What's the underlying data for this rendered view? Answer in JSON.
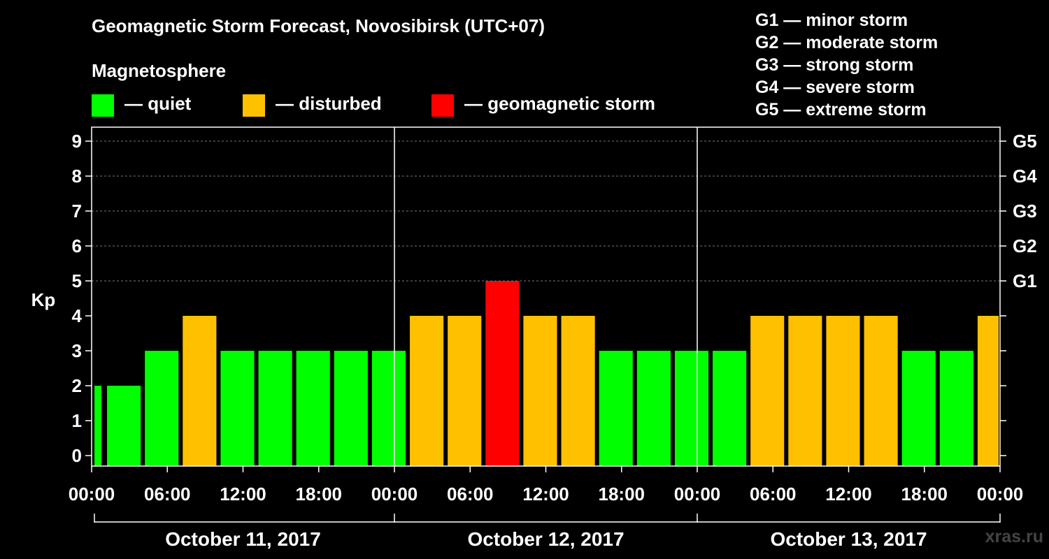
{
  "title": "Geomagnetic Storm Forecast, Novosibirsk (UTC+07)",
  "legend": {
    "heading": "Magnetosphere",
    "items": [
      {
        "label": "— quiet",
        "color": "#00ff00"
      },
      {
        "label": "— disturbed",
        "color": "#ffc000"
      },
      {
        "label": "— geomagnetic storm",
        "color": "#ff0000"
      }
    ]
  },
  "g_scale": [
    "G1 — minor storm",
    "G2 — moderate storm",
    "G3 — strong storm",
    "G4 — severe storm",
    "G5 — extreme storm"
  ],
  "watermark": "xras.ru",
  "colors": {
    "quiet": "#00ff00",
    "disturbed": "#ffc000",
    "storm": "#ff0000",
    "background": "#000000",
    "axis": "#ffffff"
  },
  "chart_data": {
    "type": "bar",
    "ylabel": "Kp",
    "ylim": [
      0,
      9
    ],
    "yticks": [
      "0",
      "1",
      "2",
      "3",
      "4",
      "5",
      "6",
      "7",
      "8",
      "9"
    ],
    "right_ticks": [
      {
        "kp": 5,
        "label": "G1"
      },
      {
        "kp": 6,
        "label": "G2"
      },
      {
        "kp": 7,
        "label": "G3"
      },
      {
        "kp": 8,
        "label": "G4"
      },
      {
        "kp": 9,
        "label": "G5"
      }
    ],
    "xticks": [
      "00:00",
      "06:00",
      "12:00",
      "18:00",
      "00:00",
      "06:00",
      "12:00",
      "18:00",
      "00:00",
      "06:00",
      "12:00",
      "18:00",
      "00:00"
    ],
    "dates": [
      "October 11, 2017",
      "October 12, 2017",
      "October 13, 2017"
    ],
    "x_start": "2017-10-11 00:00",
    "x_end": "2017-10-14 00:00",
    "grid": "horizontal dashed",
    "bars": [
      {
        "start": "2017-10-11 00:00",
        "end": "2017-10-11 01:00",
        "kp": 2
      },
      {
        "start": "2017-10-11 01:00",
        "end": "2017-10-11 04:00",
        "kp": 2
      },
      {
        "start": "2017-10-11 04:00",
        "end": "2017-10-11 07:00",
        "kp": 3
      },
      {
        "start": "2017-10-11 07:00",
        "end": "2017-10-11 10:00",
        "kp": 4
      },
      {
        "start": "2017-10-11 10:00",
        "end": "2017-10-11 13:00",
        "kp": 3
      },
      {
        "start": "2017-10-11 13:00",
        "end": "2017-10-11 16:00",
        "kp": 3
      },
      {
        "start": "2017-10-11 16:00",
        "end": "2017-10-11 19:00",
        "kp": 3
      },
      {
        "start": "2017-10-11 19:00",
        "end": "2017-10-11 22:00",
        "kp": 3
      },
      {
        "start": "2017-10-11 22:00",
        "end": "2017-10-12 01:00",
        "kp": 3
      },
      {
        "start": "2017-10-12 01:00",
        "end": "2017-10-12 04:00",
        "kp": 4
      },
      {
        "start": "2017-10-12 04:00",
        "end": "2017-10-12 07:00",
        "kp": 4
      },
      {
        "start": "2017-10-12 07:00",
        "end": "2017-10-12 10:00",
        "kp": 5
      },
      {
        "start": "2017-10-12 10:00",
        "end": "2017-10-12 13:00",
        "kp": 4
      },
      {
        "start": "2017-10-12 13:00",
        "end": "2017-10-12 16:00",
        "kp": 4
      },
      {
        "start": "2017-10-12 16:00",
        "end": "2017-10-12 19:00",
        "kp": 3
      },
      {
        "start": "2017-10-12 19:00",
        "end": "2017-10-12 22:00",
        "kp": 3
      },
      {
        "start": "2017-10-12 22:00",
        "end": "2017-10-13 01:00",
        "kp": 3
      },
      {
        "start": "2017-10-13 01:00",
        "end": "2017-10-13 04:00",
        "kp": 3
      },
      {
        "start": "2017-10-13 04:00",
        "end": "2017-10-13 07:00",
        "kp": 4
      },
      {
        "start": "2017-10-13 07:00",
        "end": "2017-10-13 10:00",
        "kp": 4
      },
      {
        "start": "2017-10-13 10:00",
        "end": "2017-10-13 13:00",
        "kp": 4
      },
      {
        "start": "2017-10-13 13:00",
        "end": "2017-10-13 16:00",
        "kp": 4
      },
      {
        "start": "2017-10-13 16:00",
        "end": "2017-10-13 19:00",
        "kp": 3
      },
      {
        "start": "2017-10-13 19:00",
        "end": "2017-10-13 22:00",
        "kp": 3
      },
      {
        "start": "2017-10-13 22:00",
        "end": "2017-10-14 00:00",
        "kp": 4
      }
    ]
  }
}
